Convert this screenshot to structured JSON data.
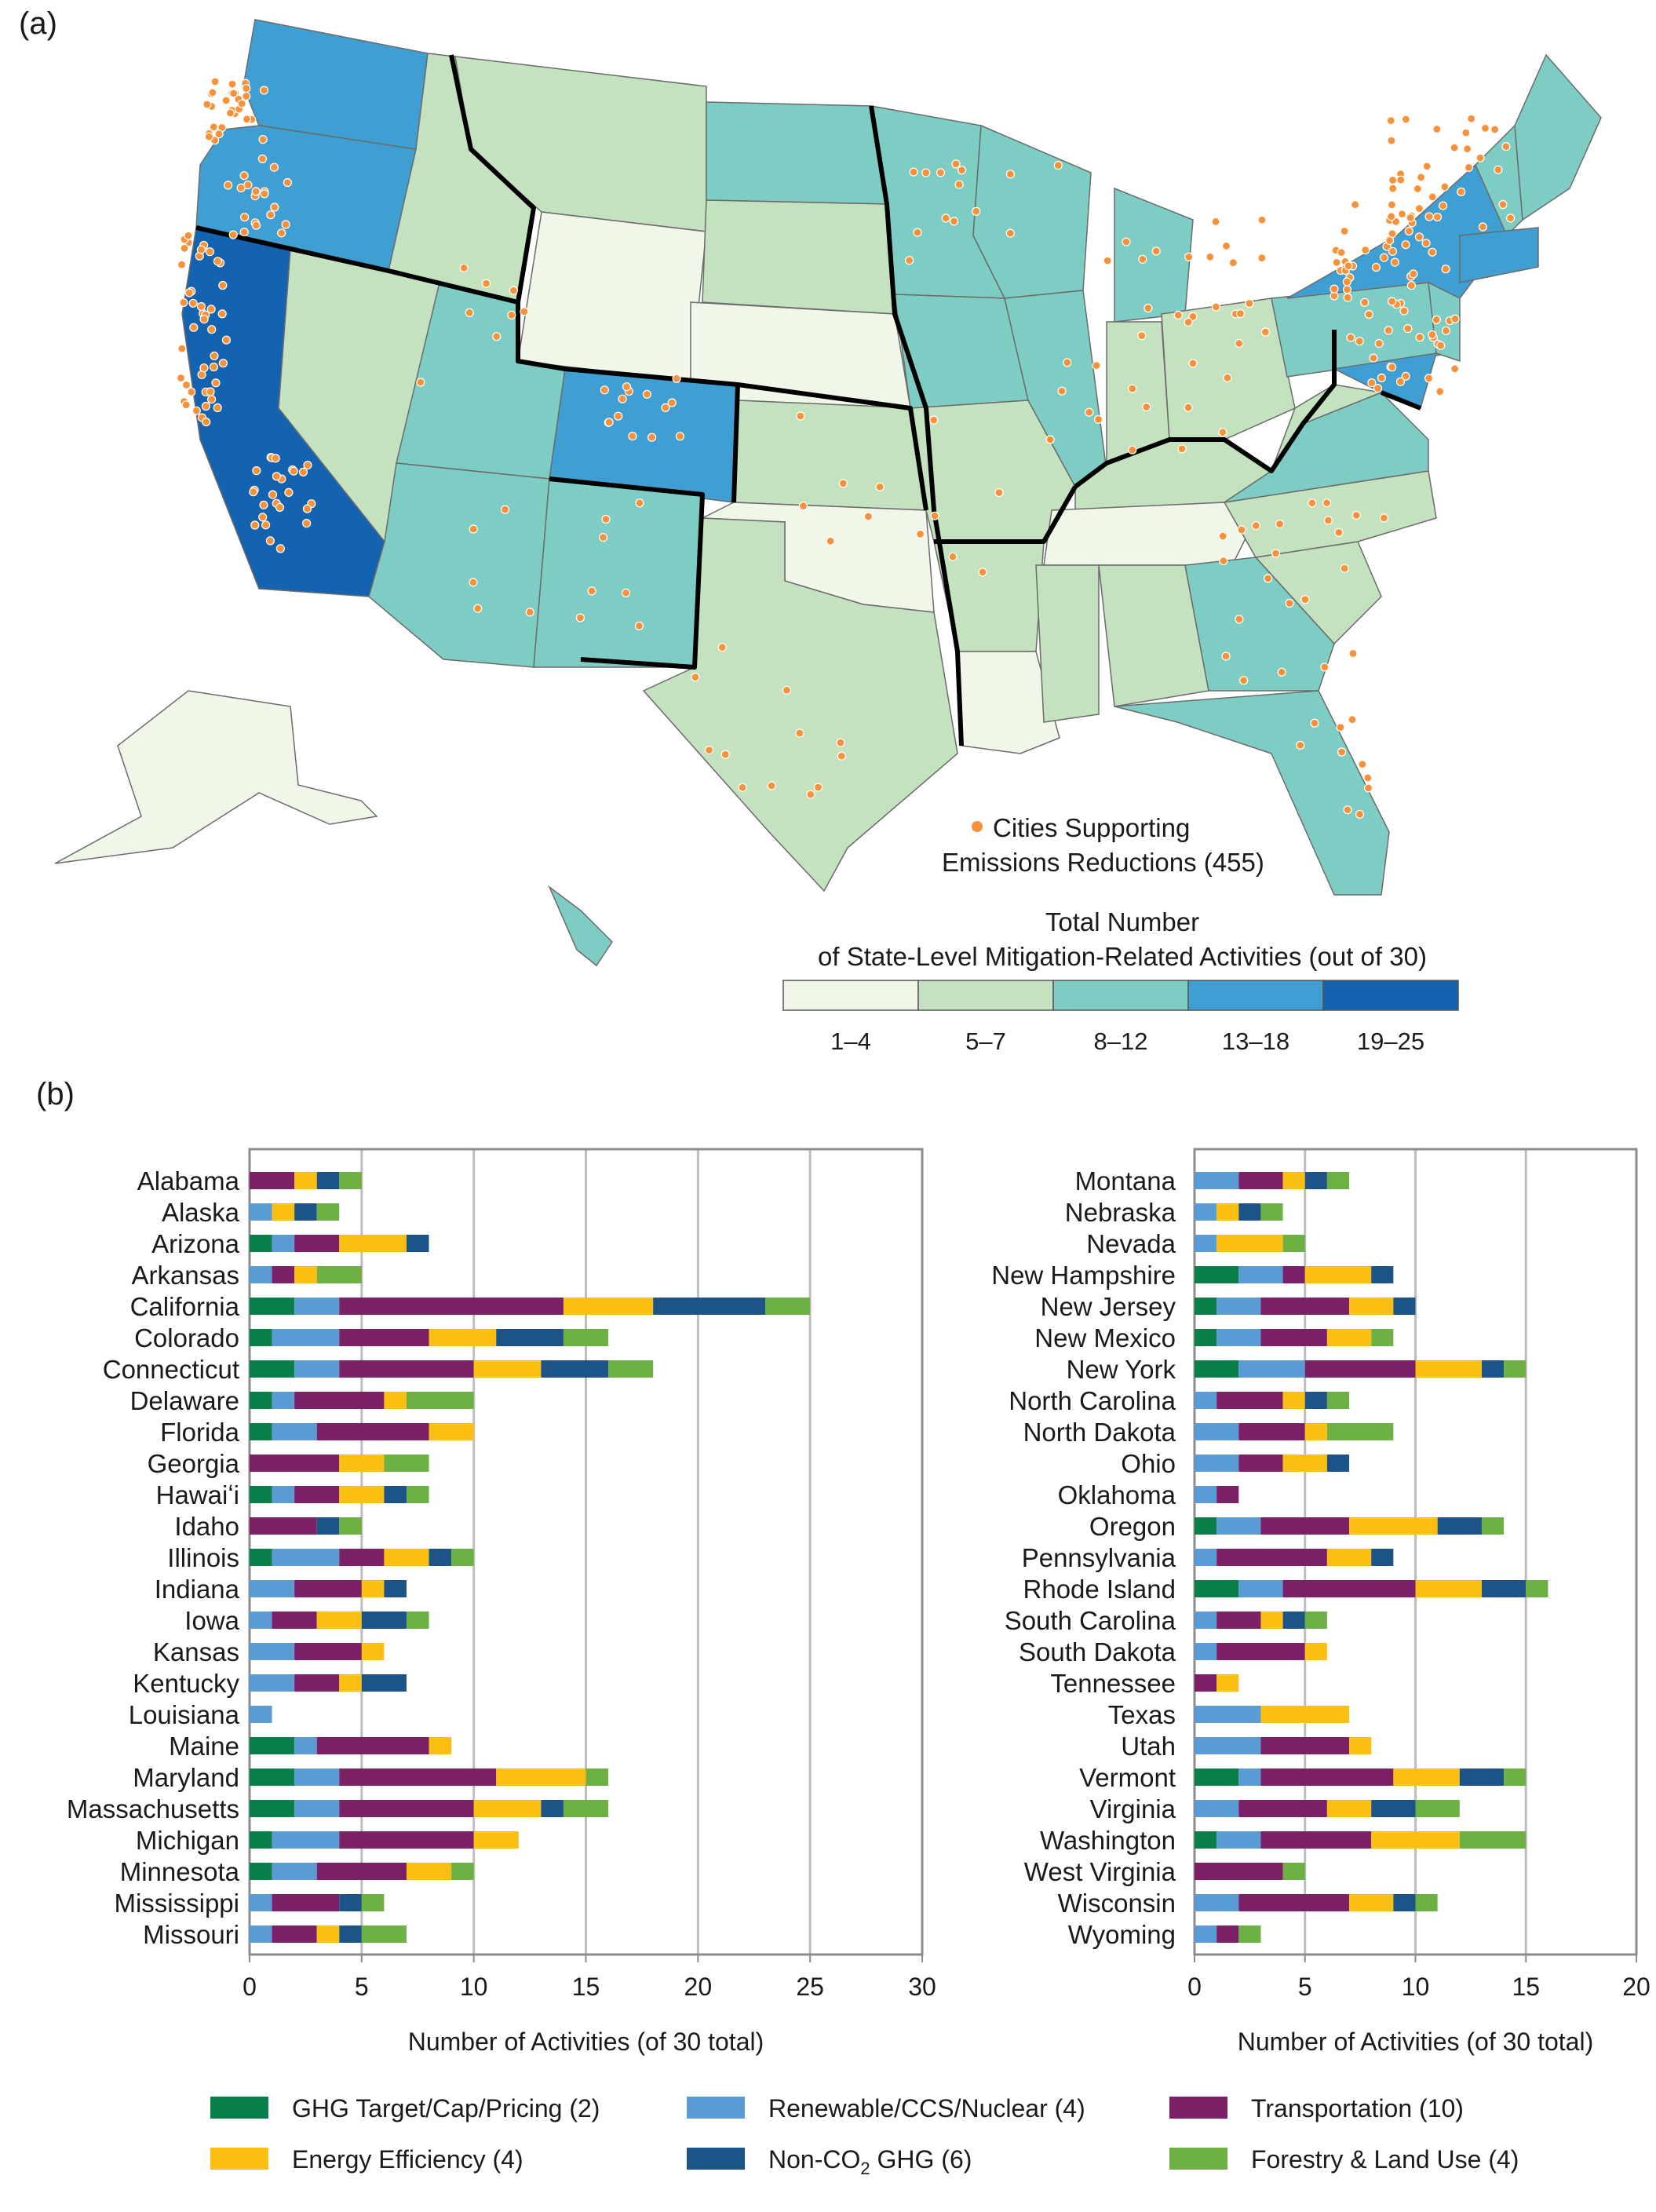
{
  "panel_a_label": "(a)",
  "panel_b_label": "(b)",
  "map": {
    "dots_legend": [
      "Cities Supporting",
      "Emissions Reductions (455)"
    ],
    "scale_title": [
      "Total Number",
      "of State-Level Mitigation-Related Activities (out of 30)"
    ],
    "bins": [
      {
        "label": "1–4",
        "color": "#f1f7e8"
      },
      {
        "label": "5–7",
        "color": "#c4e2bf"
      },
      {
        "label": "8–12",
        "color": "#7ecdc4"
      },
      {
        "label": "13–18",
        "color": "#3f9fd3"
      },
      {
        "label": "19–25",
        "color": "#1463b0"
      }
    ],
    "dot_color": "#f7923a"
  },
  "chart_data": [
    {
      "type": "bar",
      "orientation": "horizontal",
      "stacked": true,
      "xlabel": "Number of Activities (of 30 total)",
      "xlim": [
        0,
        30
      ],
      "xticks": [
        0,
        5,
        10,
        15,
        20,
        25,
        30
      ],
      "grid": true,
      "categories": [
        "Alabama",
        "Alaska",
        "Arizona",
        "Arkansas",
        "California",
        "Colorado",
        "Connecticut",
        "Delaware",
        "Florida",
        "Georgia",
        "Hawaiʻi",
        "Idaho",
        "Illinois",
        "Indiana",
        "Iowa",
        "Kansas",
        "Kentucky",
        "Louisiana",
        "Maine",
        "Maryland",
        "Massachusetts",
        "Michigan",
        "Minnesota",
        "Mississippi",
        "Missouri"
      ],
      "series": [
        {
          "name": "GHG Target/Cap/Pricing (2)",
          "color": "#0b7f4a",
          "values": [
            0,
            0,
            1,
            0,
            2,
            1,
            2,
            1,
            1,
            0,
            1,
            0,
            1,
            0,
            0,
            0,
            0,
            0,
            2,
            2,
            2,
            1,
            1,
            0,
            0
          ]
        },
        {
          "name": "Renewable/CCS/Nuclear (4)",
          "color": "#5b9bd5",
          "values": [
            0,
            1,
            1,
            1,
            2,
            3,
            2,
            1,
            2,
            0,
            1,
            0,
            3,
            2,
            1,
            2,
            2,
            1,
            1,
            2,
            2,
            3,
            2,
            1,
            1
          ]
        },
        {
          "name": "Transportation (10)",
          "color": "#7b1f66",
          "values": [
            2,
            0,
            2,
            1,
            10,
            4,
            6,
            4,
            5,
            4,
            2,
            3,
            2,
            3,
            2,
            3,
            2,
            0,
            5,
            7,
            6,
            6,
            4,
            3,
            2
          ]
        },
        {
          "name": "Energy Efficiency (4)",
          "color": "#fbbf12",
          "values": [
            1,
            1,
            3,
            1,
            4,
            3,
            3,
            1,
            2,
            2,
            2,
            0,
            2,
            1,
            2,
            1,
            1,
            0,
            1,
            4,
            3,
            2,
            2,
            0,
            1
          ]
        },
        {
          "name": "Non-CO2 GHG (6)",
          "color": "#1c5487",
          "values": [
            1,
            1,
            1,
            0,
            5,
            3,
            3,
            0,
            0,
            0,
            1,
            1,
            1,
            1,
            2,
            0,
            2,
            0,
            0,
            0,
            1,
            0,
            0,
            1,
            1
          ]
        },
        {
          "name": "Forestry & Land Use (4)",
          "color": "#6db043",
          "values": [
            1,
            1,
            0,
            2,
            2,
            2,
            2,
            3,
            0,
            2,
            1,
            1,
            1,
            0,
            1,
            0,
            0,
            0,
            0,
            1,
            2,
            0,
            1,
            1,
            2
          ]
        }
      ]
    },
    {
      "type": "bar",
      "orientation": "horizontal",
      "stacked": true,
      "xlabel": "Number of Activities (of 30 total)",
      "xlim": [
        0,
        20
      ],
      "xticks": [
        0,
        5,
        10,
        15,
        20
      ],
      "grid": true,
      "categories": [
        "Montana",
        "Nebraska",
        "Nevada",
        "New Hampshire",
        "New Jersey",
        "New Mexico",
        "New York",
        "North Carolina",
        "North Dakota",
        "Ohio",
        "Oklahoma",
        "Oregon",
        "Pennsylvania",
        "Rhode Island",
        "South Carolina",
        "South Dakota",
        "Tennessee",
        "Texas",
        "Utah",
        "Vermont",
        "Virginia",
        "Washington",
        "West Virginia",
        "Wisconsin",
        "Wyoming"
      ],
      "series": [
        {
          "name": "GHG Target/Cap/Pricing (2)",
          "color": "#0b7f4a",
          "values": [
            0,
            0,
            0,
            2,
            1,
            1,
            2,
            0,
            0,
            0,
            0,
            1,
            0,
            2,
            0,
            0,
            0,
            0,
            0,
            2,
            0,
            1,
            0,
            0,
            0
          ]
        },
        {
          "name": "Renewable/CCS/Nuclear (4)",
          "color": "#5b9bd5",
          "values": [
            2,
            1,
            1,
            2,
            2,
            2,
            3,
            1,
            2,
            2,
            1,
            2,
            1,
            2,
            1,
            1,
            0,
            3,
            3,
            1,
            2,
            2,
            0,
            2,
            1
          ]
        },
        {
          "name": "Transportation (10)",
          "color": "#7b1f66",
          "values": [
            2,
            0,
            0,
            1,
            4,
            3,
            5,
            3,
            3,
            2,
            1,
            4,
            5,
            6,
            2,
            4,
            1,
            0,
            4,
            6,
            4,
            5,
            4,
            5,
            1
          ]
        },
        {
          "name": "Energy Efficiency (4)",
          "color": "#fbbf12",
          "values": [
            1,
            1,
            3,
            3,
            2,
            2,
            3,
            1,
            1,
            2,
            0,
            4,
            2,
            3,
            1,
            1,
            1,
            4,
            1,
            3,
            2,
            4,
            0,
            2,
            0
          ]
        },
        {
          "name": "Non-CO2 GHG (6)",
          "color": "#1c5487",
          "values": [
            1,
            1,
            0,
            1,
            1,
            0,
            1,
            1,
            0,
            1,
            0,
            2,
            1,
            2,
            1,
            0,
            0,
            0,
            0,
            2,
            2,
            0,
            0,
            1,
            0
          ]
        },
        {
          "name": "Forestry & Land Use (4)",
          "color": "#6db043",
          "values": [
            1,
            1,
            1,
            0,
            0,
            1,
            1,
            1,
            3,
            0,
            0,
            1,
            0,
            1,
            1,
            0,
            0,
            0,
            0,
            1,
            2,
            3,
            1,
            1,
            1
          ]
        }
      ]
    }
  ],
  "legend": [
    {
      "label": "GHG Target/Cap/Pricing (2)",
      "color": "#0b7f4a"
    },
    {
      "label": "Renewable/CCS/Nuclear (4)",
      "color": "#5b9bd5"
    },
    {
      "label": "Transportation (10)",
      "color": "#7b1f66"
    },
    {
      "label": "Energy Efficiency (4)",
      "color": "#fbbf12"
    },
    {
      "label": "Non-CO",
      "sub": "2",
      "tail": " GHG (6)",
      "color": "#1c5487"
    },
    {
      "label": "Forestry & Land Use (4)",
      "color": "#6db043"
    }
  ]
}
